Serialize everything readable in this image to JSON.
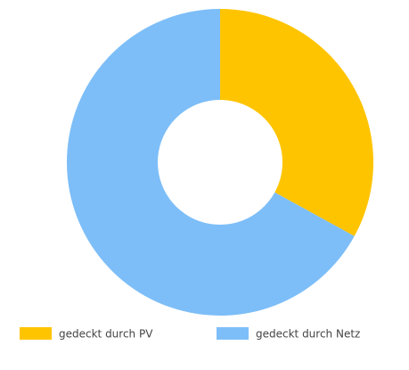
{
  "chart_data": {
    "type": "donut",
    "categories": [
      "gedeckt durch PV",
      "gedeckt durch Netz"
    ],
    "values": [
      33,
      67
    ],
    "colors": [
      "#ffc400",
      "#7dbef8"
    ],
    "legend": "bottom"
  }
}
